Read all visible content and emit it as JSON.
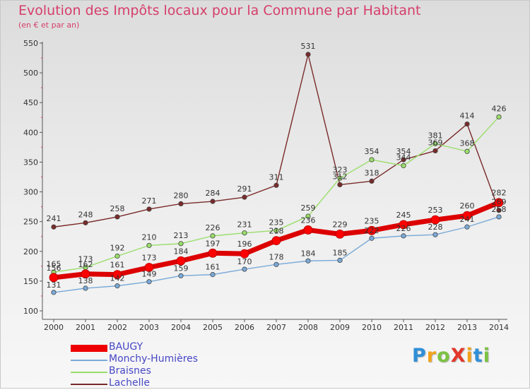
{
  "title": "Evolution des Impôts locaux pour la Commune par Habitant",
  "subtitle": "(en € et par an)",
  "logo": {
    "text": "ProXiti",
    "letters": [
      {
        "char": "P",
        "color": "#2f8fd8"
      },
      {
        "char": "r",
        "color": "#f2a31b"
      },
      {
        "char": "o",
        "color": "#7cc242"
      },
      {
        "char": "X",
        "color": "#e2382a"
      },
      {
        "char": "i",
        "color": "#f2a31b"
      },
      {
        "char": "t",
        "color": "#2f8fd8"
      },
      {
        "char": "i",
        "color": "#7cc242"
      }
    ]
  },
  "chart_data": {
    "type": "line",
    "title": "Evolution des Impôts locaux pour la Commune par Habitant",
    "subtitle": "(en € et par an)",
    "xlabel": "",
    "ylabel": "",
    "x": [
      "2000",
      "2001",
      "2002",
      "2003",
      "2004",
      "2005",
      "2006",
      "2007",
      "2008",
      "2009",
      "2010",
      "2011",
      "2012",
      "2013",
      "2014"
    ],
    "ylim": [
      100,
      550
    ],
    "yticks": [
      100,
      150,
      200,
      250,
      300,
      350,
      400,
      450,
      500,
      550
    ],
    "grid": false,
    "legend_position": "bottom-left",
    "series": [
      {
        "name": "BAUGY",
        "color": "#ee0000",
        "values": [
          156,
          162,
          161,
          173,
          184,
          197,
          196,
          218,
          236,
          229,
          235,
          245,
          253,
          260,
          282
        ]
      },
      {
        "name": "Monchy-Humières",
        "color": "#7aaad8",
        "values": [
          131,
          138,
          142,
          149,
          159,
          161,
          170,
          178,
          184,
          185,
          222,
          226,
          228,
          241,
          258
        ]
      },
      {
        "name": "Braisnes",
        "color": "#9ade6a",
        "values": [
          165,
          173,
          192,
          210,
          213,
          226,
          231,
          235,
          259,
          323,
          354,
          344,
          381,
          368,
          426
        ]
      },
      {
        "name": "Lachelle",
        "color": "#7a2a2a",
        "values": [
          241,
          248,
          258,
          271,
          280,
          284,
          291,
          311,
          531,
          312,
          318,
          354,
          369,
          414,
          269
        ]
      }
    ],
    "data_labels": {
      "BAUGY": [
        "156",
        "162",
        "161",
        "173",
        "184",
        "197",
        "196",
        "218",
        "236",
        "229",
        "235",
        "245",
        "253",
        "260",
        "282"
      ],
      "Monchy-Humières": [
        "131",
        "138",
        "142",
        "149",
        "159",
        "161",
        "170",
        "178",
        "184",
        "185",
        "222",
        "226",
        "228",
        "241",
        "258"
      ],
      "Braisnes": [
        "165",
        "173",
        "192",
        "210",
        "213",
        "226",
        "231",
        "235",
        "259",
        "323",
        "354",
        "344",
        "381",
        "368",
        "426"
      ],
      "Lachelle": [
        "241",
        "248",
        "258",
        "271",
        "280",
        "284",
        "291",
        "311",
        "531",
        "312",
        "318",
        "354",
        "369",
        "414",
        "269"
      ]
    }
  }
}
